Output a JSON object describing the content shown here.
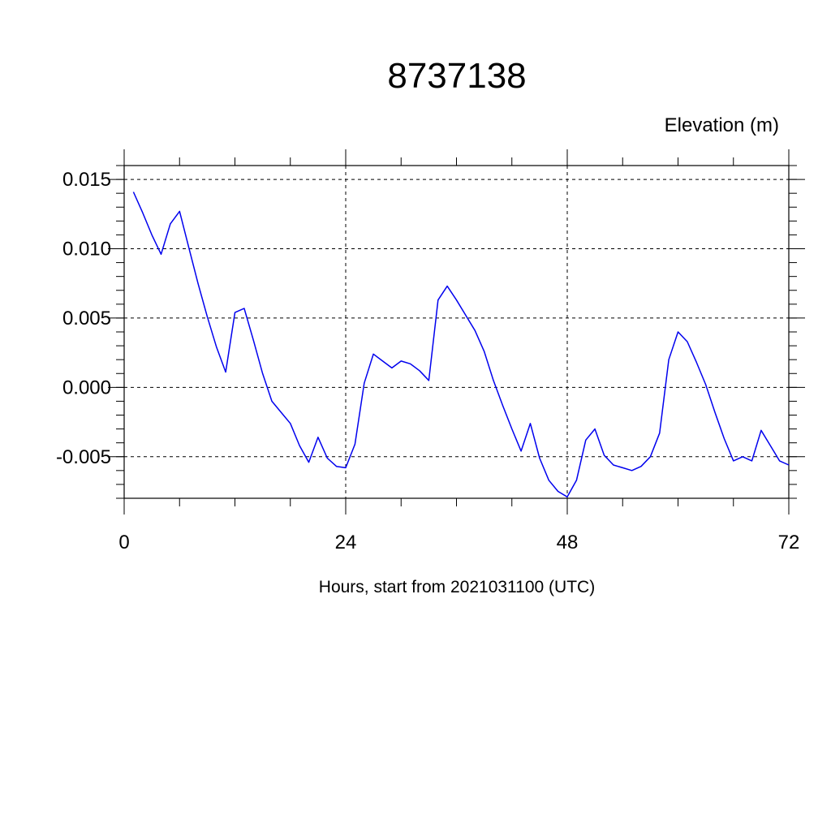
{
  "chart_data": {
    "type": "line",
    "title": "8737138",
    "ylabel": "Elevation (m)",
    "xlabel": "Hours, start from 2021031100 (UTC)",
    "xlim": [
      0,
      72
    ],
    "ylim": [
      -0.008,
      0.016
    ],
    "x_ticks": [
      0,
      24,
      48,
      72
    ],
    "x_tick_labels": [
      "0",
      "24",
      "48",
      "72"
    ],
    "y_ticks": [
      0.015,
      0.01,
      0.005,
      0.0,
      -0.005
    ],
    "y_tick_labels": [
      "0.015",
      "0.010",
      "0.005",
      "0.000",
      "-0.005"
    ],
    "grid": true,
    "series": [
      {
        "color": "#0000ee",
        "x": [
          1,
          2,
          3,
          4,
          5,
          6,
          7,
          8,
          9,
          10,
          11,
          12,
          13,
          14,
          15,
          16,
          17,
          18,
          19,
          20,
          21,
          22,
          23,
          24,
          25,
          26,
          27,
          28,
          29,
          30,
          31,
          32,
          33,
          34,
          35,
          36,
          37,
          38,
          39,
          40,
          41,
          42,
          43,
          44,
          45,
          46,
          47,
          48,
          49,
          50,
          51,
          52,
          53,
          54,
          55,
          56,
          57,
          58,
          59,
          60,
          61,
          62,
          63,
          64,
          65,
          66,
          67,
          68,
          69,
          70,
          71,
          72
        ],
        "y": [
          0.0141,
          0.0126,
          0.011,
          0.0096,
          0.0118,
          0.0127,
          0.0101,
          0.0075,
          0.0051,
          0.0029,
          0.0011,
          0.0054,
          0.0057,
          0.0034,
          0.001,
          -0.001,
          -0.0018,
          -0.0026,
          -0.0042,
          -0.0054,
          -0.0036,
          -0.0051,
          -0.0057,
          -0.0058,
          -0.0041,
          0.0003,
          0.0024,
          0.0019,
          0.0014,
          0.0019,
          0.0017,
          0.0012,
          0.0005,
          0.0063,
          0.0073,
          0.0063,
          0.0052,
          0.0041,
          0.0026,
          0.0005,
          -0.0013,
          -0.003,
          -0.0046,
          -0.0026,
          -0.0051,
          -0.0067,
          -0.0075,
          -0.0079,
          -0.0067,
          -0.0038,
          -0.003,
          -0.0049,
          -0.0056,
          -0.0058,
          -0.006,
          -0.0057,
          -0.005,
          -0.0033,
          0.002,
          0.004,
          0.0033,
          0.0018,
          0.0002,
          -0.0018,
          -0.0037,
          -0.0053,
          -0.005,
          -0.0053,
          -0.0031,
          -0.0042,
          -0.0053,
          -0.0056
        ]
      }
    ]
  }
}
